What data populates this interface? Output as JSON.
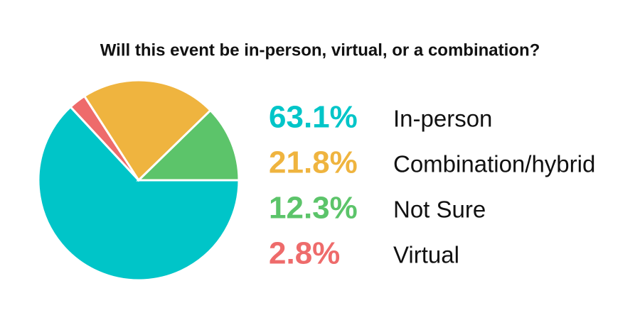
{
  "chart_data": {
    "type": "pie",
    "title": "Will this event be in-person, virtual, or a combination?",
    "categories": [
      "In-person",
      "Combination/hybrid",
      "Not Sure",
      "Virtual"
    ],
    "values": [
      63.1,
      21.8,
      12.3,
      2.8
    ],
    "value_labels": [
      "63.1%",
      "21.8%",
      "12.3%",
      "2.8%"
    ],
    "colors": [
      "#00c5c8",
      "#efb43f",
      "#5cc46a",
      "#ee6b6b"
    ]
  }
}
